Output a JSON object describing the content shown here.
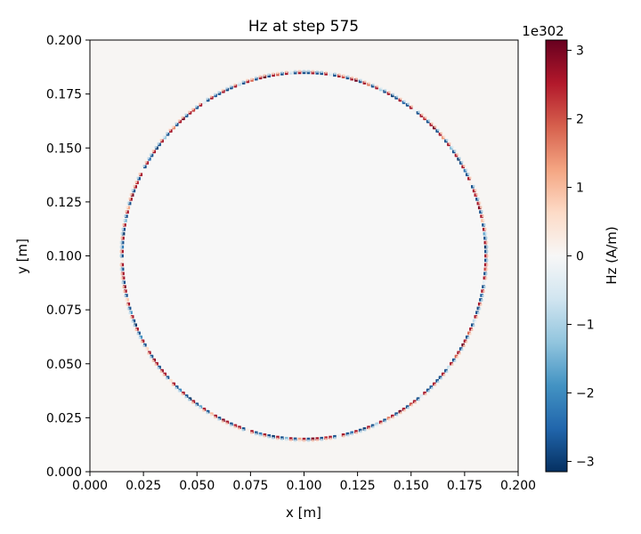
{
  "chart_data": {
    "type": "heatmap",
    "title": "Hz at step 575",
    "xlabel": "x [m]",
    "ylabel": "y [m]",
    "xlim": [
      0.0,
      0.2
    ],
    "ylim": [
      0.0,
      0.2
    ],
    "x_ticks": [
      "0.000",
      "0.025",
      "0.050",
      "0.075",
      "0.100",
      "0.125",
      "0.150",
      "0.175",
      "0.200"
    ],
    "y_ticks": [
      "0.000",
      "0.025",
      "0.050",
      "0.075",
      "0.100",
      "0.125",
      "0.150",
      "0.175",
      "0.200"
    ],
    "grid": false,
    "colormap": "RdBu_r",
    "field": {
      "background_value": 0.05,
      "interior_value": 0.0,
      "ring_center": [
        0.1,
        0.1
      ],
      "ring_radius": 0.085,
      "ring_values_range": [
        -3.1,
        3.1
      ]
    },
    "colorbar": {
      "label": "Hz (A/m)",
      "scale_label": "1e302",
      "vmin": -3.15,
      "vmax": 3.15,
      "ticks": [
        -3,
        -2,
        -1,
        0,
        1,
        2,
        3
      ],
      "tick_labels": [
        "−3",
        "−2",
        "−1",
        "0",
        "1",
        "2",
        "3"
      ],
      "colors": [
        "#053061",
        "#2166ac",
        "#4393c3",
        "#92c5de",
        "#d1e5f0",
        "#f7f7f7",
        "#fddbc7",
        "#f4a582",
        "#d6604d",
        "#b2182b",
        "#67001f"
      ]
    }
  }
}
